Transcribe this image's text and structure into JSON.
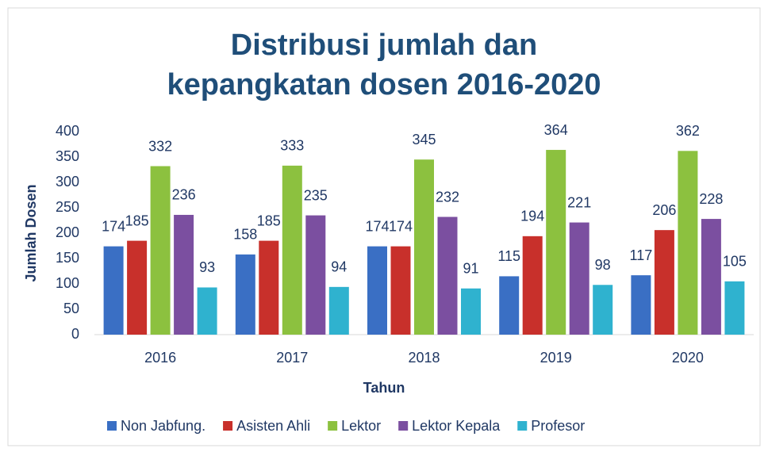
{
  "chart_data": {
    "type": "bar",
    "title": "Distribusi jumlah dan kepangkatan dosen 2016-2020",
    "x_label": "Tahun",
    "y_label": "Jumlah Dosen",
    "categories": [
      "2016",
      "2017",
      "2018",
      "2019",
      "2020"
    ],
    "series": [
      {
        "name": "Non Jabfung.",
        "color": "#3a6fc4",
        "values": [
          174,
          158,
          174,
          115,
          117
        ]
      },
      {
        "name": "Asisten Ahli",
        "color": "#c8302b",
        "values": [
          185,
          185,
          174,
          194,
          206
        ]
      },
      {
        "name": "Lektor",
        "color": "#8cc13f",
        "values": [
          332,
          333,
          345,
          364,
          362
        ]
      },
      {
        "name": "Lektor Kepala",
        "color": "#7b4fa0",
        "values": [
          236,
          235,
          232,
          221,
          228
        ]
      },
      {
        "name": "Profesor",
        "color": "#2fb2cf",
        "values": [
          93,
          94,
          91,
          98,
          105
        ]
      }
    ],
    "ylim": [
      0,
      400
    ],
    "yticks": [
      0,
      50,
      100,
      150,
      200,
      250,
      300,
      350,
      400
    ],
    "grid": false,
    "legend": "bottom"
  }
}
